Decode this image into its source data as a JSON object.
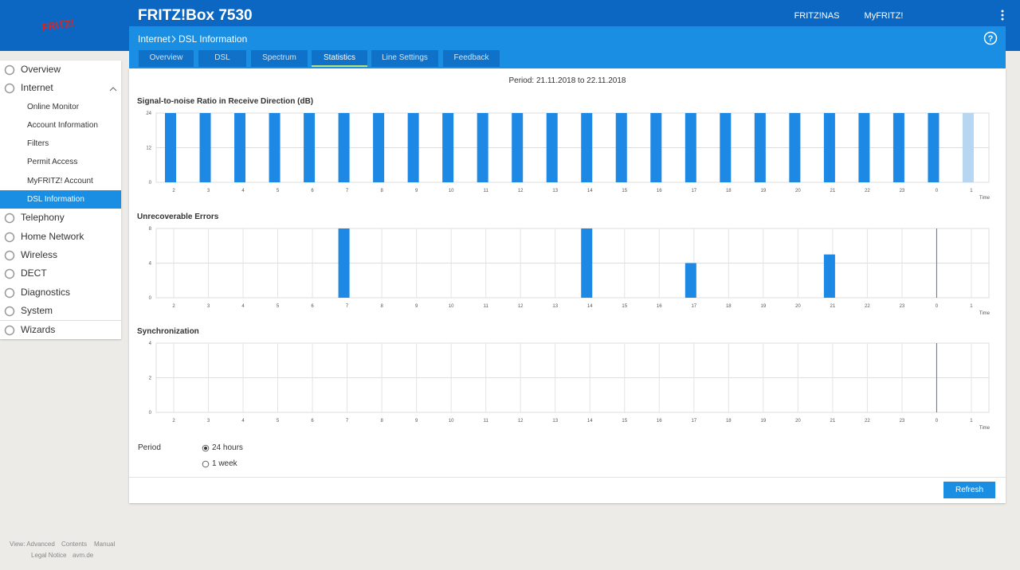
{
  "header": {
    "logo": "FRITZ!",
    "product": "FRITZ!Box 7530",
    "links": [
      "FRITZ!NAS",
      "MyFRITZ!"
    ],
    "help": "?"
  },
  "breadcrumb": [
    "Internet",
    "DSL Information"
  ],
  "tabs": [
    "Overview",
    "DSL",
    "Spectrum",
    "Statistics",
    "Line Settings",
    "Feedback"
  ],
  "active_tab": 3,
  "sidebar": [
    {
      "label": "Overview"
    },
    {
      "label": "Internet",
      "children": [
        {
          "label": "Online Monitor"
        },
        {
          "label": "Account Information"
        },
        {
          "label": "Filters"
        },
        {
          "label": "Permit Access"
        },
        {
          "label": "MyFRITZ! Account"
        },
        {
          "label": "DSL Information",
          "active": true
        }
      ]
    },
    {
      "label": "Telephony"
    },
    {
      "label": "Home Network"
    },
    {
      "label": "Wireless"
    },
    {
      "label": "DECT"
    },
    {
      "label": "Diagnostics"
    },
    {
      "label": "System"
    },
    {
      "label": "Wizards"
    }
  ],
  "period_text": "Period: 21.11.2018 to 22.11.2018",
  "chart_data": [
    {
      "type": "bar",
      "title": "Signal-to-noise Ratio in Receive Direction (dB)",
      "x_label": "Time",
      "categories": [
        "2",
        "3",
        "4",
        "5",
        "6",
        "7",
        "8",
        "9",
        "10",
        "11",
        "12",
        "13",
        "14",
        "15",
        "16",
        "17",
        "18",
        "19",
        "20",
        "21",
        "22",
        "23",
        "0",
        "1"
      ],
      "values": [
        24,
        24,
        24,
        24,
        24,
        24,
        24,
        24,
        24,
        24,
        24,
        24,
        24,
        24,
        24,
        24,
        24,
        24,
        24,
        24,
        24,
        24,
        24,
        24
      ],
      "color": "#1e88e5",
      "current_index": 23,
      "current_color": "#b7d6f2",
      "ylim": [
        0,
        24
      ],
      "yticks": [
        0,
        12,
        24
      ],
      "grid": true
    },
    {
      "type": "bar",
      "title": "Unrecoverable Errors",
      "x_label": "Time",
      "categories": [
        "2",
        "3",
        "4",
        "5",
        "6",
        "7",
        "8",
        "9",
        "10",
        "11",
        "12",
        "13",
        "14",
        "15",
        "16",
        "17",
        "18",
        "19",
        "20",
        "21",
        "22",
        "23",
        "0",
        "1"
      ],
      "values": [
        0,
        0,
        0,
        0,
        0,
        8,
        0,
        0,
        0,
        0,
        0,
        0,
        8,
        0,
        0,
        4,
        0,
        0,
        0,
        5,
        0,
        0,
        0,
        0
      ],
      "color": "#1e88e5",
      "now_index": 22,
      "ylim": [
        0,
        8
      ],
      "yticks": [
        0,
        4,
        8
      ],
      "grid": true
    },
    {
      "type": "bar",
      "title": "Synchronization",
      "x_label": "Time",
      "categories": [
        "2",
        "3",
        "4",
        "5",
        "6",
        "7",
        "8",
        "9",
        "10",
        "11",
        "12",
        "13",
        "14",
        "15",
        "16",
        "17",
        "18",
        "19",
        "20",
        "21",
        "22",
        "23",
        "0",
        "1"
      ],
      "values": [
        0,
        0,
        0,
        0,
        0,
        0,
        0,
        0,
        0,
        0,
        0,
        0,
        0,
        0,
        0,
        0,
        0,
        0,
        0,
        0,
        0,
        0,
        0,
        0
      ],
      "color": "#1e88e5",
      "now_index": 22,
      "ylim": [
        0,
        4
      ],
      "yticks": [
        0,
        2,
        4
      ],
      "grid": true
    }
  ],
  "period": {
    "label": "Period",
    "options": [
      "24 hours",
      "1 week"
    ],
    "selected": 0
  },
  "button": "Refresh",
  "footer": [
    [
      "View: Advanced",
      "Contents",
      "Manual"
    ],
    [
      "Legal Notice",
      "avm.de"
    ]
  ]
}
